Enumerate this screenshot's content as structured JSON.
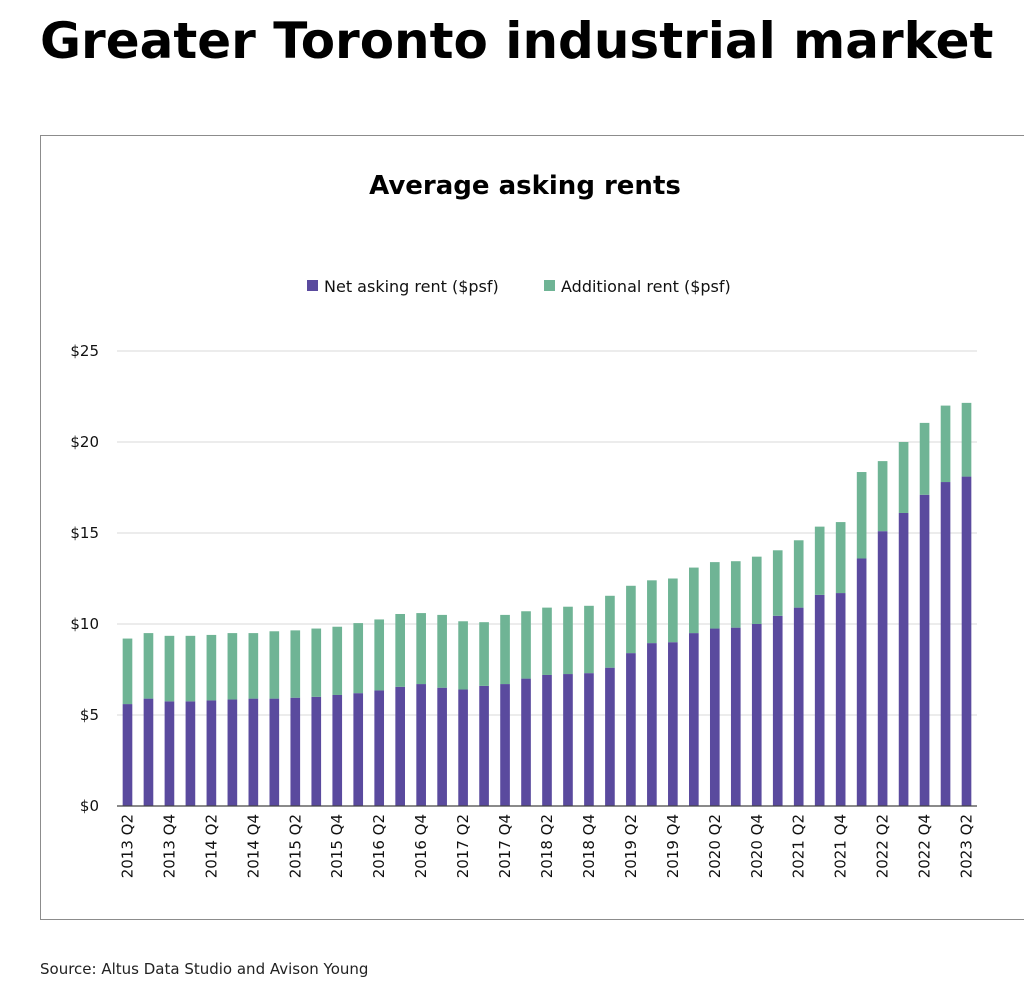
{
  "header": {
    "title": "Greater Toronto industrial market"
  },
  "footer": {
    "source": "Source: Altus Data Studio and Avison Young"
  },
  "colors": {
    "net": "#5a4a9e",
    "additional": "#6fb495",
    "grid": "#d9d9d9",
    "axis": "#444444"
  },
  "chart_data": {
    "type": "bar",
    "stacked": true,
    "title": "Average asking rents",
    "xlabel": "",
    "ylabel": "",
    "ylim": [
      0,
      25
    ],
    "yticks": [
      "$0",
      "$5",
      "$10",
      "$15",
      "$20",
      "$25"
    ],
    "ytick_values": [
      0,
      5,
      10,
      15,
      20,
      25
    ],
    "grid": true,
    "legend_position": "top-center",
    "categories": [
      "2013 Q2",
      "2013 Q3",
      "2013 Q4",
      "2014 Q1",
      "2014 Q2",
      "2014 Q3",
      "2014 Q4",
      "2015 Q1",
      "2015 Q2",
      "2015 Q3",
      "2015 Q4",
      "2016 Q1",
      "2016 Q2",
      "2016 Q3",
      "2016 Q4",
      "2017 Q1",
      "2017 Q2",
      "2017 Q3",
      "2017 Q4",
      "2018 Q1",
      "2018 Q2",
      "2018 Q3",
      "2018 Q4",
      "2019 Q1",
      "2019 Q2",
      "2019 Q3",
      "2019 Q4",
      "2020 Q1",
      "2020 Q2",
      "2020 Q3",
      "2020 Q4",
      "2021 Q1",
      "2021 Q2",
      "2021 Q3",
      "2021 Q4",
      "2022 Q1",
      "2022 Q2",
      "2022 Q3",
      "2022 Q4",
      "2023 Q1",
      "2023 Q2"
    ],
    "visible_tick_labels": [
      "2013 Q2",
      "2013 Q4",
      "2014 Q2",
      "2014 Q4",
      "2015 Q2",
      "2015 Q4",
      "2016 Q2",
      "2016 Q4",
      "2017 Q2",
      "2017 Q4",
      "2018 Q2",
      "2018 Q4",
      "2019 Q2",
      "2019 Q4",
      "2020 Q2",
      "2020 Q4",
      "2021 Q2",
      "2021 Q4",
      "2022 Q2",
      "2022 Q4",
      "2023 Q2"
    ],
    "series": [
      {
        "name": "Net asking rent ($psf)",
        "color": "#5a4a9e",
        "values": [
          5.6,
          5.9,
          5.75,
          5.75,
          5.8,
          5.85,
          5.9,
          5.9,
          5.95,
          6.0,
          6.1,
          6.2,
          6.35,
          6.55,
          6.7,
          6.5,
          6.4,
          6.6,
          6.7,
          7.0,
          7.2,
          7.25,
          7.3,
          7.6,
          8.4,
          8.95,
          9.0,
          9.5,
          9.75,
          9.8,
          10.0,
          10.45,
          10.9,
          11.6,
          11.7,
          13.6,
          15.1,
          16.1,
          17.1,
          17.8,
          18.1
        ]
      },
      {
        "name": "Additional rent ($psf)",
        "color": "#6fb495",
        "values": [
          3.6,
          3.6,
          3.6,
          3.6,
          3.6,
          3.65,
          3.6,
          3.7,
          3.7,
          3.75,
          3.75,
          3.85,
          3.9,
          4.0,
          3.9,
          4.0,
          3.75,
          3.5,
          3.8,
          3.7,
          3.7,
          3.7,
          3.7,
          3.95,
          3.7,
          3.45,
          3.5,
          3.6,
          3.65,
          3.65,
          3.7,
          3.6,
          3.7,
          3.75,
          3.9,
          4.75,
          3.85,
          3.9,
          3.95,
          4.2,
          4.05
        ]
      }
    ]
  }
}
